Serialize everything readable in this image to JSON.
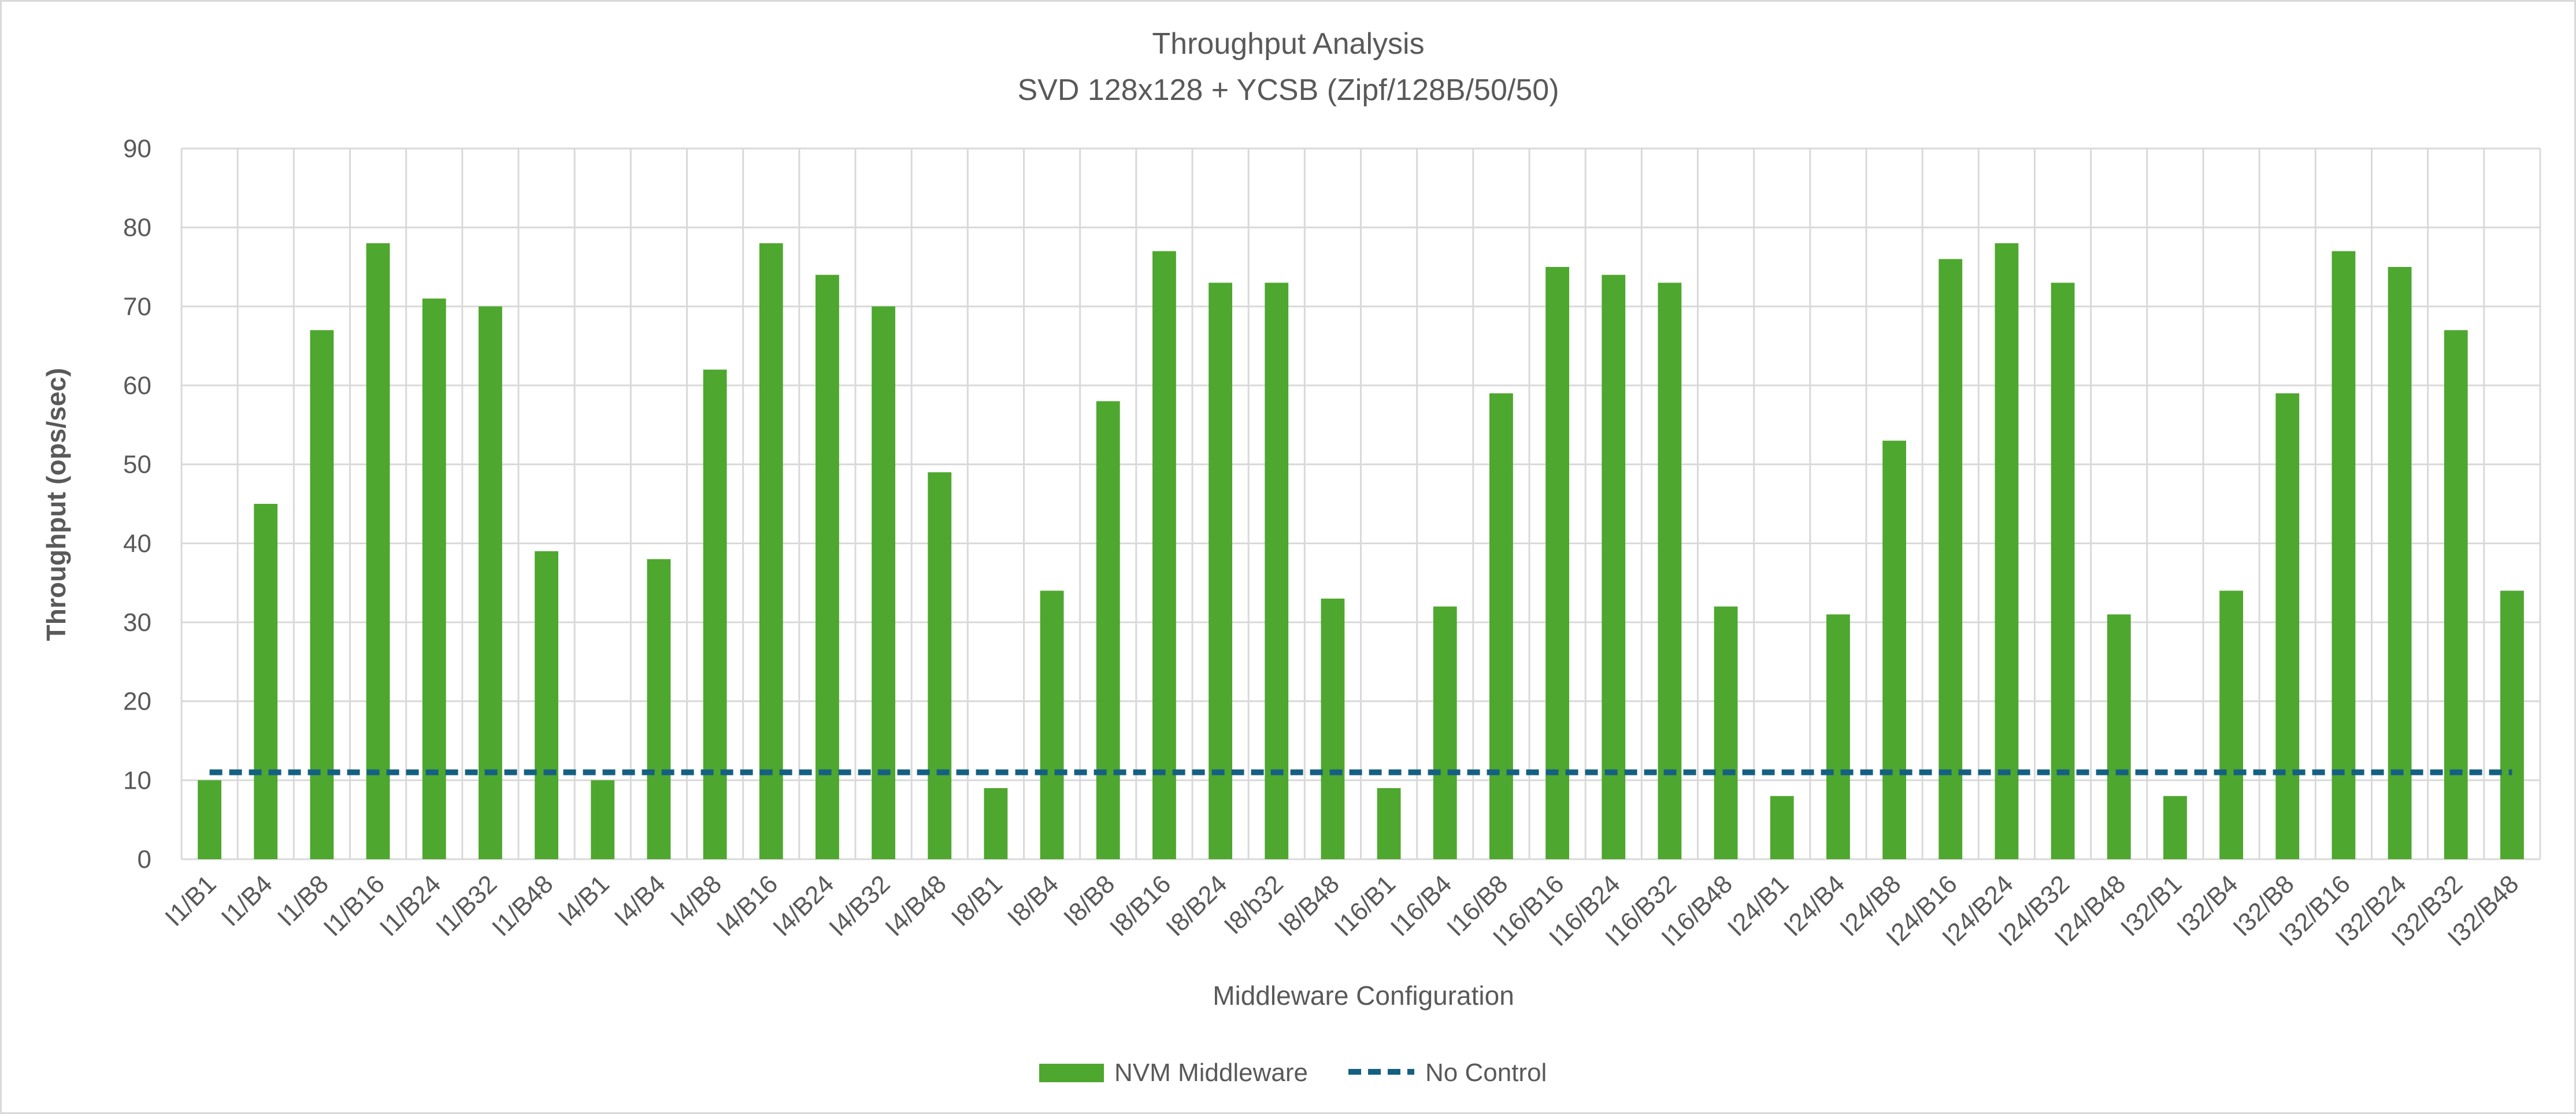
{
  "chart_data": {
    "type": "bar",
    "title": "Throughput Analysis",
    "subtitle": "SVD 128x128 + YCSB (Zipf/128B/50/50)",
    "xlabel": "Middleware Configuration",
    "ylabel": "Throughput (ops/sec)",
    "ylim": [
      0,
      90
    ],
    "yticks": [
      0,
      10,
      20,
      30,
      40,
      50,
      60,
      70,
      80,
      90
    ],
    "grid": true,
    "legend_position": "bottom",
    "categories": [
      "I1/B1",
      "I1/B4",
      "I1/B8",
      "I1/B16",
      "I1/B24",
      "I1/B32",
      "I1/B48",
      "I4/B1",
      "I4/B4",
      "I4/B8",
      "I4/B16",
      "I4/B24",
      "I4/B32",
      "I4/B48",
      "I8/B1",
      "I8/B4",
      "I8/B8",
      "I8/B16",
      "I8/B24",
      "I8/b32",
      "I8/B48",
      "I16/B1",
      "I16/B4",
      "I16/B8",
      "I16/B16",
      "I16/B24",
      "I16/B32",
      "I16/B48",
      "I24/B1",
      "I24/B4",
      "I24/B8",
      "I24/B16",
      "I24/B24",
      "I24/B32",
      "I24/B48",
      "I32/B1",
      "I32/B4",
      "I32/B8",
      "I32/B16",
      "I32/B24",
      "I32/B32",
      "I32/B48"
    ],
    "series": [
      {
        "name": "NVM Middleware",
        "kind": "bar",
        "color": "#4ea72e",
        "values": [
          10,
          45,
          67,
          78,
          71,
          70,
          39,
          10,
          38,
          62,
          78,
          74,
          70,
          49,
          9,
          34,
          58,
          77,
          73,
          73,
          33,
          9,
          32,
          59,
          75,
          74,
          73,
          32,
          8,
          31,
          53,
          76,
          78,
          73,
          31,
          8,
          34,
          59,
          77,
          75,
          67,
          34
        ]
      },
      {
        "name": "No Control",
        "kind": "dashed-line",
        "color": "#156082",
        "value": 11
      }
    ]
  }
}
